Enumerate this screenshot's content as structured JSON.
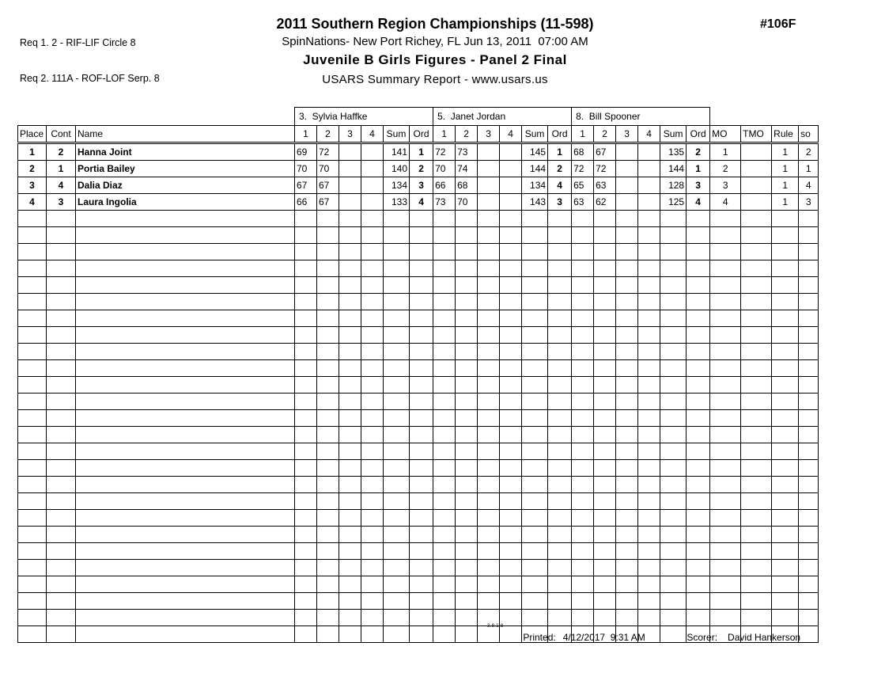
{
  "page": {
    "req1": "Req 1. 2 - RIF-LIF Circle 8",
    "req2": "Req 2. 111A - ROF-LOF Serp. 8",
    "title": "2011 Southern Region Championships (11-598)",
    "subtitle": "SpinNations- New Port Richey, FL Jun 13, 2011  07:00 AM",
    "event_title": "Juvenile B Girls Figures - Panel 2 Final",
    "report_line": "USARS Summary Report - www.usars.us",
    "doc_number": "#106F"
  },
  "judges": [
    {
      "label": "3.  Sylvia Haffke"
    },
    {
      "label": "5.  Janet Jordan"
    },
    {
      "label": "8.  Bill Spooner"
    }
  ],
  "header_row": {
    "place": "Place",
    "cont": "Cont",
    "name": "Name",
    "judge_cols": [
      "1",
      "2",
      "3",
      "4",
      "Sum",
      "Ord"
    ],
    "right_cols": [
      "MO",
      "TMO",
      "Rule",
      "so"
    ]
  },
  "table": {
    "rows": [
      {
        "place": "1",
        "cont": "2",
        "name": "Hanna Joint",
        "judges": [
          [
            "69",
            "72",
            "",
            "",
            "141",
            "1"
          ],
          [
            "72",
            "73",
            "",
            "",
            "145",
            "1"
          ],
          [
            "68",
            "67",
            "",
            "",
            "135",
            "2"
          ]
        ],
        "mo": "1",
        "tmo": "",
        "rule": "1",
        "so": "2"
      },
      {
        "place": "2",
        "cont": "1",
        "name": "Portia Bailey",
        "judges": [
          [
            "70",
            "70",
            "",
            "",
            "140",
            "2"
          ],
          [
            "70",
            "74",
            "",
            "",
            "144",
            "2"
          ],
          [
            "72",
            "72",
            "",
            "",
            "144",
            "1"
          ]
        ],
        "mo": "2",
        "tmo": "",
        "rule": "1",
        "so": "1"
      },
      {
        "place": "3",
        "cont": "4",
        "name": "Dalia Diaz",
        "judges": [
          [
            "67",
            "67",
            "",
            "",
            "134",
            "3"
          ],
          [
            "66",
            "68",
            "",
            "",
            "134",
            "4"
          ],
          [
            "65",
            "63",
            "",
            "",
            "128",
            "3"
          ]
        ],
        "mo": "3",
        "tmo": "",
        "rule": "1",
        "so": "4"
      },
      {
        "place": "4",
        "cont": "3",
        "name": "Laura Ingolia",
        "judges": [
          [
            "66",
            "67",
            "",
            "",
            "133",
            "4"
          ],
          [
            "73",
            "70",
            "",
            "",
            "143",
            "3"
          ],
          [
            "63",
            "62",
            "",
            "",
            "125",
            "4"
          ]
        ],
        "mo": "4",
        "tmo": "",
        "rule": "1",
        "so": "3"
      }
    ],
    "empty_row_count": 26
  },
  "footer": {
    "version": "3.8.1.8",
    "printed_label": "Printed:",
    "printed_value": "4/12/2017  9:31 AM",
    "scorer_label": "Scorer:",
    "scorer_value": "David Hankerson"
  }
}
